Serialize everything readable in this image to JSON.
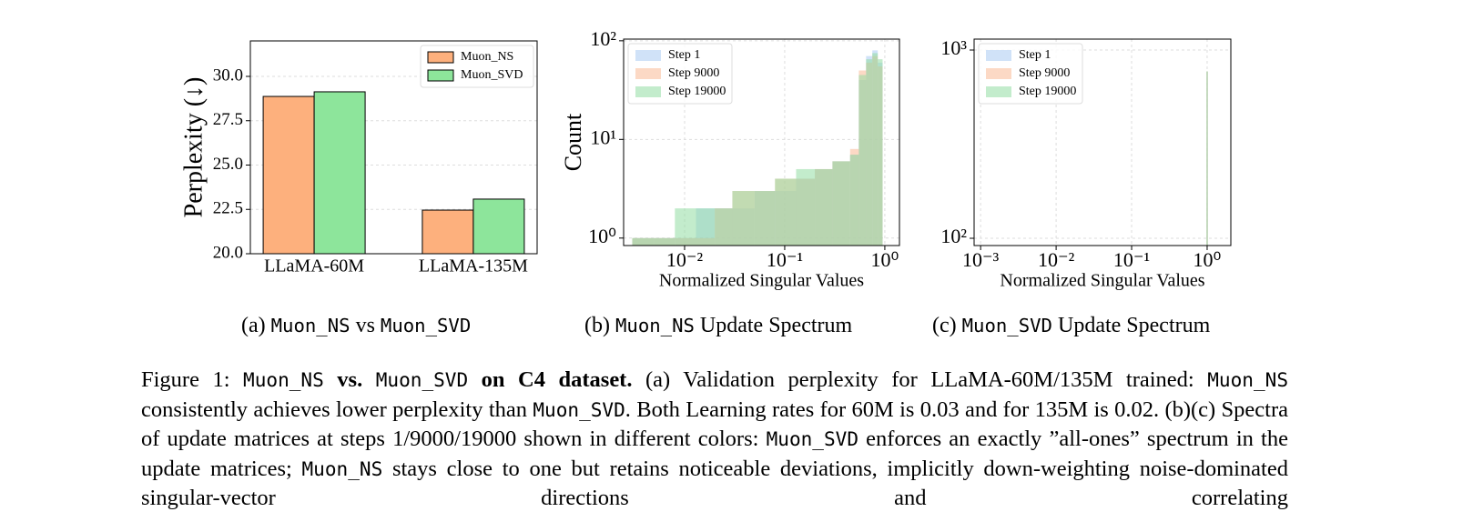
{
  "chart_data": [
    {
      "type": "bar",
      "ylabel": "Perplexity (↓)",
      "categories": [
        "LLaMA-60M",
        "LLaMA-135M"
      ],
      "series": [
        {
          "name": "Muon_NS",
          "color": "#fdb07d",
          "values": [
            28.87,
            22.46
          ]
        },
        {
          "name": "Muon_SVD",
          "color": "#8de59b",
          "values": [
            29.13,
            23.08
          ]
        }
      ],
      "ylim": [
        20,
        32
      ],
      "yticks": [
        {
          "value": 20,
          "label": "20.0"
        },
        {
          "value": 22.5,
          "label": "22.5"
        },
        {
          "value": 25,
          "label": "25.0"
        },
        {
          "value": 27.5,
          "label": "27.5"
        },
        {
          "value": 30,
          "label": "30.0"
        }
      ],
      "grid": true,
      "legend": "upper right"
    },
    {
      "type": "histogram",
      "xlabel": "Normalized Singular Values",
      "ylabel": "Count",
      "xscale": "log",
      "yscale": "log",
      "bins": [
        0.003,
        0.005,
        0.008,
        0.013,
        0.02,
        0.03,
        0.05,
        0.08,
        0.13,
        0.2,
        0.3,
        0.45,
        0.55,
        0.65,
        0.75,
        0.85,
        0.95
      ],
      "series": [
        {
          "name": "Step 1",
          "color": "#a9cbf2",
          "values": [
            1,
            1,
            1,
            2,
            2,
            2,
            3,
            3,
            4,
            5,
            6,
            7,
            40,
            70,
            80,
            60
          ]
        },
        {
          "name": "Step 9000",
          "color": "#f9b995",
          "values": [
            1,
            1,
            1,
            1,
            2,
            3,
            3,
            4,
            4,
            5,
            6,
            8,
            50,
            60,
            70,
            55
          ]
        },
        {
          "name": "Step 19000",
          "color": "#92dda2",
          "values": [
            1,
            1,
            2,
            2,
            2,
            3,
            3,
            4,
            5,
            5,
            6,
            7,
            45,
            65,
            75,
            65
          ]
        }
      ],
      "xlim": [
        0.00246,
        1.4
      ],
      "ylim": [
        0.84,
        104
      ],
      "xticks": [
        {
          "value": 0.01,
          "label": "10⁻²"
        },
        {
          "value": 0.1,
          "label": "10⁻¹"
        },
        {
          "value": 1,
          "label": "10⁰"
        }
      ],
      "yticks": [
        {
          "value": 1,
          "label": "10⁰"
        },
        {
          "value": 10,
          "label": "10¹"
        },
        {
          "value": 100,
          "label": "10²"
        }
      ],
      "grid": true,
      "legend": "upper left"
    },
    {
      "type": "histogram",
      "xlabel": "Normalized Singular Values",
      "xscale": "log",
      "yscale": "log",
      "bins": [
        0.98,
        1.02
      ],
      "series": [
        {
          "name": "Step 1",
          "color": "#a9cbf2",
          "values": [
            770
          ]
        },
        {
          "name": "Step 9000",
          "color": "#f9b995",
          "values": [
            770
          ]
        },
        {
          "name": "Step 19000",
          "color": "#92dda2",
          "values": [
            770
          ]
        }
      ],
      "xlim": [
        0.00082,
        2.06
      ],
      "ylim": [
        91.5,
        1143
      ],
      "xticks": [
        {
          "value": 0.001,
          "label": "10⁻³"
        },
        {
          "value": 0.01,
          "label": "10⁻²"
        },
        {
          "value": 0.1,
          "label": "10⁻¹"
        },
        {
          "value": 1,
          "label": "10⁰"
        }
      ],
      "yticks": [
        {
          "value": 100,
          "label": "10²"
        },
        {
          "value": 1000,
          "label": "10³"
        }
      ],
      "grid": true,
      "legend": "upper left"
    }
  ],
  "subcaptions": [
    [
      {
        "text": "(a) "
      },
      {
        "text": "Muon_NS",
        "style": "mono"
      },
      {
        "text": " vs "
      },
      {
        "text": "Muon_SVD",
        "style": "mono"
      }
    ],
    [
      {
        "text": "(b) "
      },
      {
        "text": "Muon_NS",
        "style": "mono"
      },
      {
        "text": " Update Spectrum"
      }
    ],
    [
      {
        "text": "(c) "
      },
      {
        "text": "Muon_SVD",
        "style": "mono"
      },
      {
        "text": " Update Spectrum"
      }
    ]
  ],
  "caption": [
    {
      "text": "Figure 1: "
    },
    {
      "text": "Muon_NS",
      "style": "mono"
    },
    {
      "text": " vs. ",
      "style": "bold"
    },
    {
      "text": "Muon_SVD",
      "style": "mono"
    },
    {
      "text": " on C4 dataset.",
      "style": "bold"
    },
    {
      "text": " (a) Validation perplexity for LLaMA-60M/135M trained: "
    },
    {
      "text": "Muon_NS",
      "style": "mono"
    },
    {
      "text": " consistently achieves lower perplexity than "
    },
    {
      "text": "Muon_SVD",
      "style": "mono"
    },
    {
      "text": ". Both Learning rates for 60M is 0.03 and for 135M is 0.02. (b)(c) Spectra of update matrices at steps 1/9000/19000 shown in different colors: "
    },
    {
      "text": "Muon_SVD",
      "style": "mono"
    },
    {
      "text": " enforces an exactly ”all-ones” spectrum in the update matrices; "
    },
    {
      "text": "Muon_NS",
      "style": "mono"
    },
    {
      "text": " stays close to one but retains noticeable deviations, implicitly down-weighting noise-dominated singular-vector directions and correlating"
    }
  ]
}
